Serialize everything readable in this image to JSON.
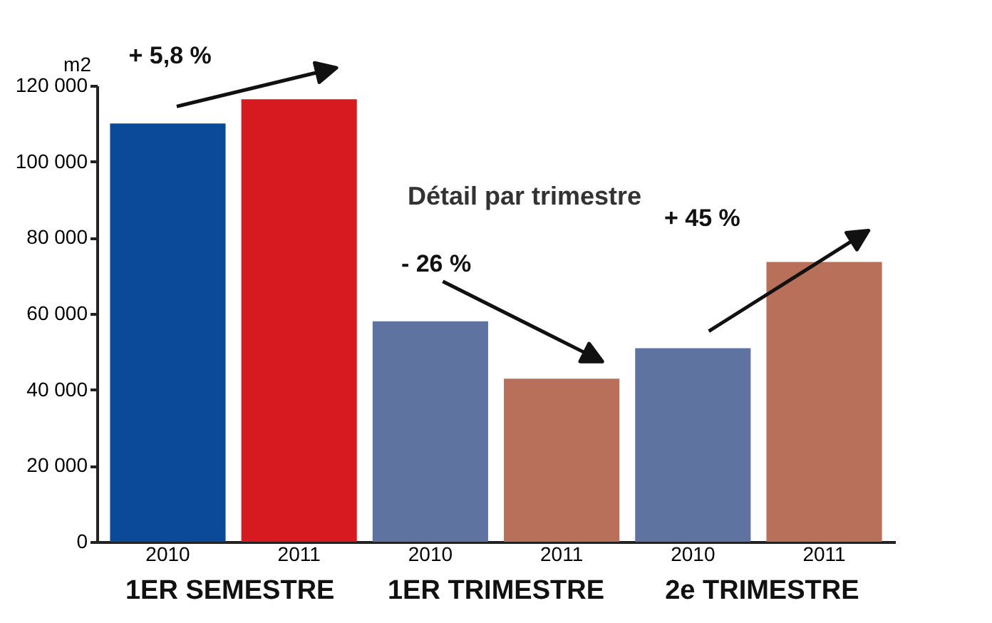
{
  "chart_data": {
    "type": "bar",
    "ylabel": "m2",
    "categories": [
      "2010",
      "2011",
      "2010",
      "2011",
      "2010",
      "2011"
    ],
    "values": [
      110000,
      116400,
      58000,
      42900,
      50900,
      73600
    ],
    "colors": [
      "#0a4a99",
      "#d71920",
      "#5f73a0",
      "#b9705a",
      "#5f73a0",
      "#b9705a"
    ],
    "ylim": [
      0,
      120000
    ],
    "yticks": [
      {
        "value": 0,
        "label": "0"
      },
      {
        "value": 20000,
        "label": "20 000"
      },
      {
        "value": 40000,
        "label": "40 000"
      },
      {
        "value": 60000,
        "label": "60 000"
      },
      {
        "value": 80000,
        "label": "80 000"
      },
      {
        "value": 100000,
        "label": "100 000"
      },
      {
        "value": 120000,
        "label": "120 000"
      }
    ],
    "annotations": [
      "1ER SEMESTRE",
      "1ER TRIMESTRE",
      "2e TRIMESTRE",
      "Détail par trimestre",
      "+ 5,8 %",
      "- 26 %",
      "+ 45 %"
    ],
    "grid": false
  }
}
